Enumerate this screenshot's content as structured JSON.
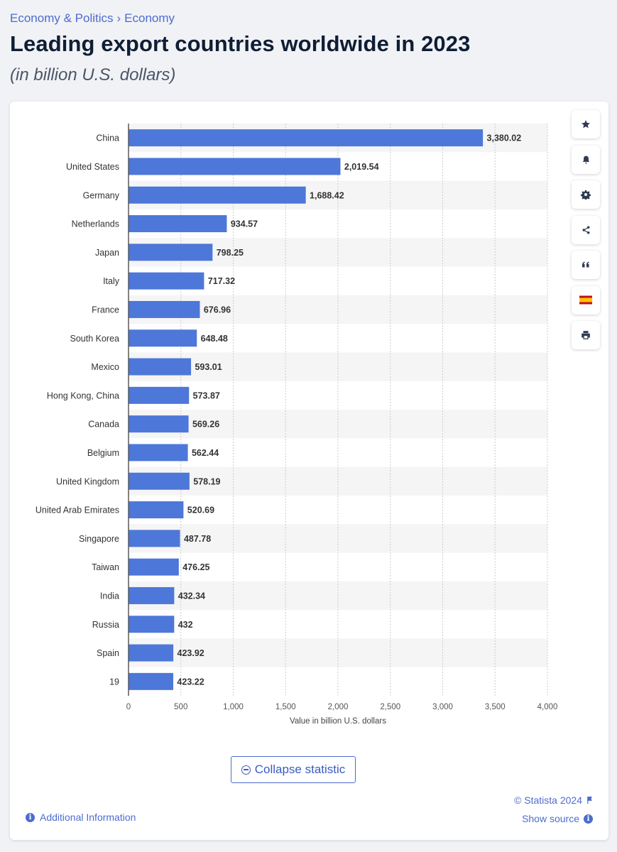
{
  "breadcrumb": {
    "items": [
      "Economy & Politics",
      "Economy"
    ],
    "separator": "›"
  },
  "header": {
    "title": "Leading export countries worldwide in 2023",
    "subtitle": "(in billion U.S. dollars)"
  },
  "toolbar": {
    "buttons": [
      "star-icon",
      "bell-icon",
      "gear-icon",
      "share-icon",
      "quote-icon",
      "spain-flag-icon",
      "print-icon"
    ]
  },
  "chart_data": {
    "type": "bar",
    "orientation": "horizontal",
    "categories": [
      "China",
      "United States",
      "Germany",
      "Netherlands",
      "Japan",
      "Italy",
      "France",
      "South Korea",
      "Mexico",
      "Hong Kong, China",
      "Canada",
      "Belgium",
      "United Kingdom",
      "United Arab Emirates",
      "Singapore",
      "Taiwan",
      "India",
      "Russia",
      "Spain",
      "19"
    ],
    "values": [
      3380.02,
      2019.54,
      1688.42,
      934.57,
      798.25,
      717.32,
      676.96,
      648.48,
      593.01,
      573.87,
      569.26,
      562.44,
      578.19,
      520.69,
      487.78,
      476.25,
      432.34,
      432,
      423.92,
      423.22
    ],
    "value_labels": [
      "3,380.02",
      "2,019.54",
      "1,688.42",
      "934.57",
      "798.25",
      "717.32",
      "676.96",
      "648.48",
      "593.01",
      "573.87",
      "569.26",
      "562.44",
      "578.19",
      "520.69",
      "487.78",
      "476.25",
      "432.34",
      "432",
      "423.92",
      "423.22"
    ],
    "xticks": [
      0,
      500,
      1000,
      1500,
      2000,
      2500,
      3000,
      3500,
      4000
    ],
    "xtick_labels": [
      "0",
      "500",
      "1,000",
      "1,500",
      "2,000",
      "2,500",
      "3,000",
      "3,500",
      "4,000"
    ],
    "xlim": [
      0,
      4000
    ],
    "xlabel": "Value in billion U.S. dollars",
    "ylabel": "",
    "grid": true,
    "bar_color": "#4d77d9"
  },
  "footer": {
    "collapse_label": "Collapse statistic",
    "copyright": "© Statista 2024",
    "show_source": "Show source",
    "additional_info": "Additional Information"
  },
  "colors": {
    "accent": "#4d6ccf",
    "title": "#0f1e35",
    "stripe": "#f5f5f5"
  }
}
